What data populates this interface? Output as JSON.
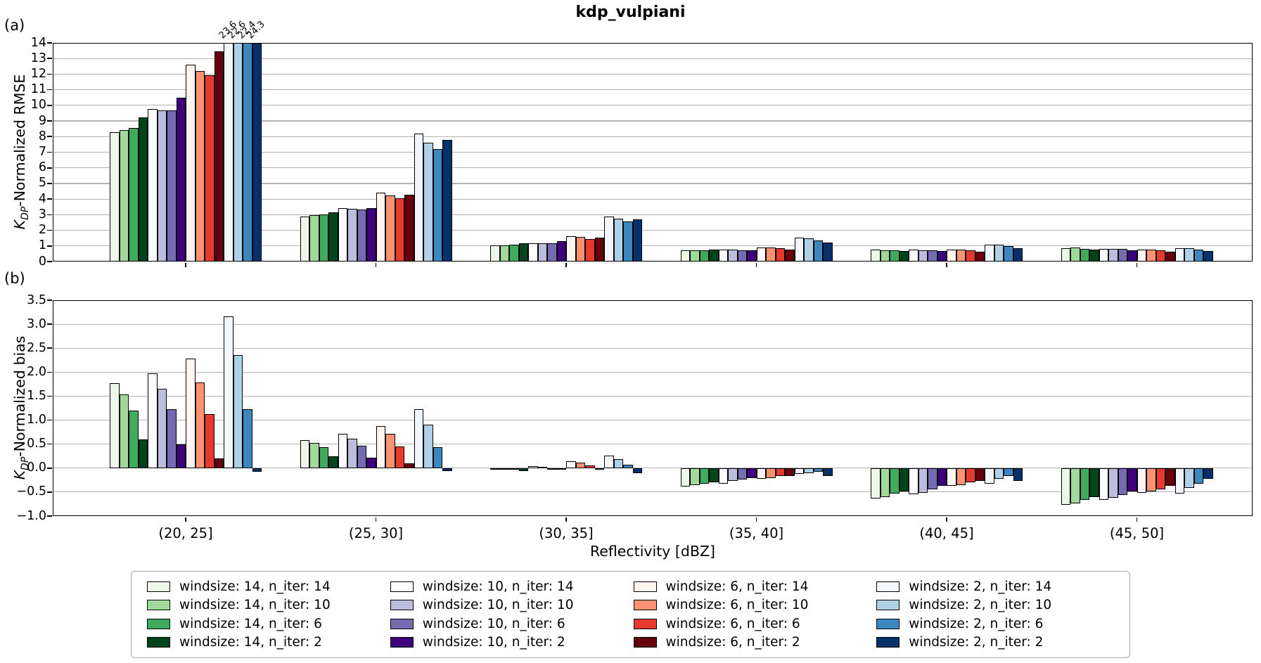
{
  "figure": {
    "title": "kdp_vulpiani",
    "panel_a_label": "(a)",
    "panel_b_label": "(b)",
    "xlabel": "Reflectivity [dBZ]",
    "ylabel_a": {
      "k": "K",
      "sub": "DP",
      "rest": "-Normalized RMSE"
    },
    "ylabel_b": {
      "k": "K",
      "sub": "DP",
      "rest": "-Normalized bias"
    }
  },
  "colors": {
    "background": "#ffffff",
    "gridline": "#b3b3b3",
    "spine": "#000000",
    "bar_edge": "#000000"
  },
  "chart_data": {
    "type": "bar",
    "title": "kdp_vulpiani",
    "xlabel": "Reflectivity [dBZ]",
    "categories": [
      "(20, 25]",
      "(25, 30]",
      "(30, 35]",
      "(35, 40]",
      "(40, 45]",
      "(45, 50]"
    ],
    "grid": true,
    "legend_position": "bottom",
    "legend_ncols": 4,
    "panels": [
      {
        "id": "a",
        "ylabel": "K_DP-Normalized RMSE",
        "field": "rmse",
        "ylim": [
          0,
          14
        ],
        "yticks": [
          "0",
          "1",
          "2",
          "3",
          "4",
          "5",
          "6",
          "7",
          "8",
          "9",
          "10",
          "11",
          "12",
          "13",
          "14"
        ],
        "clip_annotations": [
          "23.6",
          "22.6",
          "22.4",
          "24.3"
        ]
      },
      {
        "id": "b",
        "ylabel": "K_DP-Normalized bias",
        "field": "bias",
        "ylim": [
          -1.0,
          3.5
        ],
        "yticks": [
          "−1.0",
          "−0.5",
          "0.0",
          "0.5",
          "1.0",
          "1.5",
          "2.0",
          "2.5",
          "3.0",
          "3.5"
        ]
      }
    ],
    "series": [
      {
        "label": "windsize: 14, n_iter: 14",
        "color": "#edf8e9",
        "rmse": [
          8.28,
          2.88,
          1.04,
          0.72,
          0.78,
          0.85
        ],
        "bias": [
          1.77,
          0.58,
          -0.02,
          -0.39,
          -0.63,
          -0.76
        ]
      },
      {
        "label": "windsize: 14, n_iter: 10",
        "color": "#a1d99b",
        "rmse": [
          8.41,
          2.96,
          1.04,
          0.7,
          0.73,
          0.88
        ],
        "bias": [
          1.53,
          0.53,
          -0.02,
          -0.36,
          -0.6,
          -0.74
        ]
      },
      {
        "label": "windsize: 14, n_iter: 6",
        "color": "#41ab5d",
        "rmse": [
          8.55,
          3.0,
          1.06,
          0.72,
          0.72,
          0.82
        ],
        "bias": [
          1.2,
          0.43,
          -0.03,
          -0.33,
          -0.53,
          -0.66
        ]
      },
      {
        "label": "windsize: 14, n_iter: 2",
        "color": "#00441b",
        "rmse": [
          9.24,
          3.16,
          1.15,
          0.75,
          0.67,
          0.78
        ],
        "bias": [
          0.6,
          0.24,
          -0.06,
          -0.29,
          -0.48,
          -0.6
        ]
      },
      {
        "label": "windsize: 10, n_iter: 14",
        "color": "#fcfbfd",
        "rmse": [
          9.78,
          3.44,
          1.19,
          0.78,
          0.78,
          0.82
        ],
        "bias": [
          1.98,
          0.72,
          0.04,
          -0.32,
          -0.55,
          -0.66
        ]
      },
      {
        "label": "windsize: 10, n_iter: 10",
        "color": "#bcbddc",
        "rmse": [
          9.69,
          3.39,
          1.18,
          0.76,
          0.73,
          0.79
        ],
        "bias": [
          1.66,
          0.61,
          0.02,
          -0.27,
          -0.51,
          -0.62
        ]
      },
      {
        "label": "windsize: 10, n_iter: 6",
        "color": "#756bb1",
        "rmse": [
          9.69,
          3.33,
          1.19,
          0.72,
          0.72,
          0.79
        ],
        "bias": [
          1.23,
          0.47,
          0.0,
          -0.24,
          -0.44,
          -0.56
        ]
      },
      {
        "label": "windsize: 10, n_iter: 2",
        "color": "#3f007d",
        "rmse": [
          10.48,
          3.44,
          1.31,
          0.72,
          0.67,
          0.72
        ],
        "bias": [
          0.5,
          0.22,
          -0.04,
          -0.21,
          -0.37,
          -0.49
        ]
      },
      {
        "label": "windsize: 6, n_iter: 14",
        "color": "#fff5f0",
        "rmse": [
          12.6,
          4.42,
          1.61,
          0.9,
          0.76,
          0.78
        ],
        "bias": [
          2.29,
          0.88,
          0.14,
          -0.22,
          -0.37,
          -0.51
        ]
      },
      {
        "label": "windsize: 6, n_iter: 10",
        "color": "#fc9272",
        "rmse": [
          12.18,
          4.21,
          1.57,
          0.88,
          0.75,
          0.75
        ],
        "bias": [
          1.78,
          0.71,
          0.11,
          -0.21,
          -0.35,
          -0.49
        ]
      },
      {
        "label": "windsize: 6, n_iter: 6",
        "color": "#e8392e",
        "rmse": [
          11.92,
          4.07,
          1.46,
          0.84,
          0.7,
          0.72
        ],
        "bias": [
          1.12,
          0.45,
          0.05,
          -0.17,
          -0.29,
          -0.44
        ]
      },
      {
        "label": "windsize: 6, n_iter: 2",
        "color": "#67000d",
        "rmse": [
          13.45,
          4.29,
          1.52,
          0.78,
          0.64,
          0.63
        ],
        "bias": [
          0.2,
          0.1,
          -0.04,
          -0.16,
          -0.27,
          -0.37
        ]
      },
      {
        "label": "windsize: 2, n_iter: 14",
        "color": "#f2f7fd",
        "rmse": [
          23.6,
          8.2,
          2.9,
          1.52,
          1.09,
          0.87
        ],
        "bias": [
          3.17,
          1.23,
          0.26,
          -0.12,
          -0.33,
          -0.53
        ]
      },
      {
        "label": "windsize: 2, n_iter: 10",
        "color": "#aed1e7",
        "rmse": [
          22.6,
          7.6,
          2.76,
          1.49,
          1.07,
          0.84
        ],
        "bias": [
          2.35,
          0.9,
          0.18,
          -0.1,
          -0.23,
          -0.42
        ]
      },
      {
        "label": "windsize: 2, n_iter: 6",
        "color": "#3d87c1",
        "rmse": [
          22.4,
          7.2,
          2.57,
          1.33,
          1.0,
          0.76
        ],
        "bias": [
          1.23,
          0.43,
          0.07,
          -0.08,
          -0.17,
          -0.33
        ]
      },
      {
        "label": "windsize: 2, n_iter: 2",
        "color": "#08306b",
        "rmse": [
          24.3,
          7.77,
          2.69,
          1.22,
          0.85,
          0.67
        ],
        "bias": [
          -0.08,
          -0.06,
          -0.1,
          -0.17,
          -0.26,
          -0.22
        ]
      }
    ]
  }
}
